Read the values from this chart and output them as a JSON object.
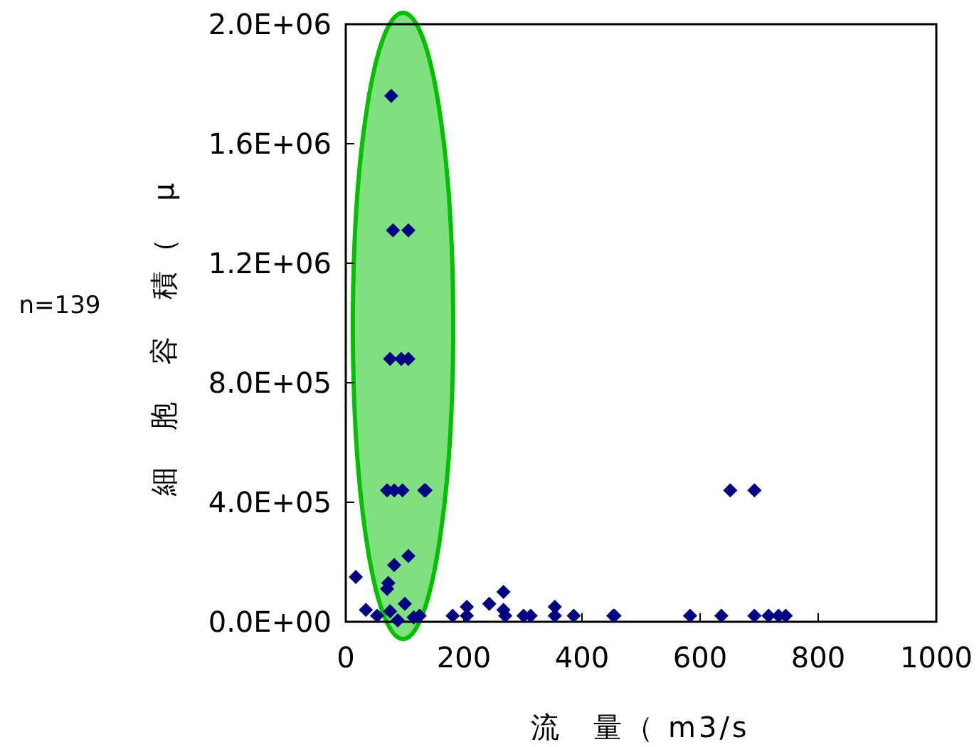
{
  "chart_data": {
    "type": "scatter",
    "xlabel": "流　量（ m3/s",
    "ylabel": "細　胞　容　積（　μ",
    "annotations": [
      "n=139"
    ],
    "x": [
      77,
      80,
      106,
      75,
      94,
      106,
      70,
      82,
      96,
      133,
      135,
      82,
      106,
      17,
      72,
      70,
      34,
      53,
      88,
      75,
      115,
      100,
      125,
      181,
      205,
      205,
      243,
      267,
      267,
      270,
      301,
      313,
      354,
      354,
      386,
      453,
      651,
      692,
      455,
      583,
      636,
      692,
      716,
      733,
      745
    ],
    "values": [
      1760000,
      1310000,
      1310000,
      880000,
      880000,
      880000,
      440000,
      440000,
      440000,
      440000,
      440000,
      190000,
      220000,
      150000,
      130000,
      110000,
      40000,
      20000,
      5000,
      35000,
      15000,
      60000,
      20000,
      20000,
      50000,
      20000,
      60000,
      100000,
      40000,
      20000,
      20000,
      20000,
      50000,
      20000,
      20000,
      20000,
      440000,
      440000,
      20000,
      20000,
      20000,
      20000,
      20000,
      20000,
      20000
    ],
    "color": "#000080",
    "marker": "diamond",
    "grid": false,
    "xlim": [
      0,
      1000
    ],
    "xticks": [
      0,
      200,
      400,
      600,
      800,
      1000
    ],
    "ylim": [
      0,
      2000000
    ],
    "yticks": [
      {
        "value": 0,
        "label": "0.0E+00"
      },
      {
        "value": 400000,
        "label": "4.0E+05"
      },
      {
        "value": 800000,
        "label": "8.0E+05"
      },
      {
        "value": 1200000,
        "label": "1.2E+06"
      },
      {
        "value": 1600000,
        "label": "1.6E+06"
      },
      {
        "value": 2000000,
        "label": "2.0E+06"
      }
    ]
  }
}
